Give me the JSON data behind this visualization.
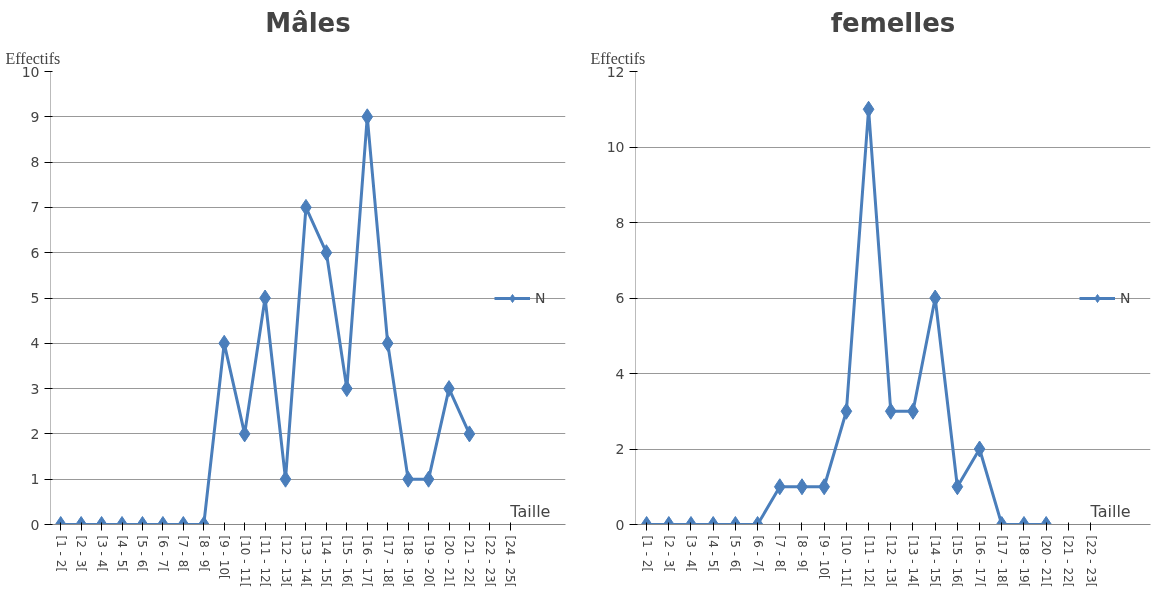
{
  "chart_data": [
    {
      "type": "line",
      "title": "Mâles",
      "ylabel": "Effectifs",
      "xlabel": "Taille",
      "categories": [
        "[1 - 2[",
        "[2 - 3[",
        "[3 - 4[",
        "[4 - 5[",
        "[5 - 6[",
        "[6 - 7[",
        "[7 - 8[",
        "[8 - 9[",
        "[9 - 10[",
        "[10 - 11[",
        "[11 - 12[",
        "[12 - 13[",
        "[13 - 14[",
        "[14 - 15[",
        "[15 - 16[",
        "[16 - 17[",
        "[17 - 18[",
        "[18 - 19[",
        "[19 - 20[",
        "[20 - 21[",
        "[21 - 22[",
        "[22 - 23[",
        "[24 - 25["
      ],
      "series": [
        {
          "name": "N",
          "color": "#4a7ebb",
          "values": [
            0,
            0,
            0,
            0,
            0,
            0,
            0,
            0,
            4,
            2,
            5,
            1,
            7,
            6,
            3,
            9,
            4,
            1,
            1,
            3,
            2,
            null,
            null
          ]
        }
      ],
      "ylim": [
        0,
        10
      ],
      "yticks": [
        0,
        1,
        2,
        3,
        4,
        5,
        6,
        7,
        8,
        9,
        10
      ],
      "grid": "y",
      "legend": "right",
      "marker": "diamond",
      "line_style": "solid"
    },
    {
      "type": "line",
      "title": "femelles",
      "ylabel": "Effectifs",
      "xlabel": "Taille",
      "categories": [
        "[1 - 2[",
        "[2 - 3[",
        "[3 - 4[",
        "[4 - 5[",
        "[5 - 6[",
        "[6 - 7[",
        "[7 - 8[",
        "[8 - 9[",
        "[9 - 10[",
        "[10 - 11[",
        "[11 - 12[",
        "[12 - 13[",
        "[13 - 14[",
        "[14 - 15[",
        "[15 - 16[",
        "[16 - 17[",
        "[17 - 18[",
        "[18 - 19[",
        "[20 - 21[",
        "[21 - 22[",
        "[22 - 23["
      ],
      "series": [
        {
          "name": "N",
          "color": "#4a7ebb",
          "values": [
            0,
            0,
            0,
            0,
            0,
            0,
            1,
            1,
            1,
            3,
            11,
            3,
            3,
            6,
            1,
            2,
            0,
            0,
            0,
            null,
            null
          ]
        }
      ],
      "ylim": [
        0,
        12
      ],
      "yticks": [
        0,
        2,
        4,
        6,
        8,
        10,
        12
      ],
      "grid": "y",
      "legend": "right",
      "marker": "diamond",
      "line_style": "solid"
    }
  ]
}
